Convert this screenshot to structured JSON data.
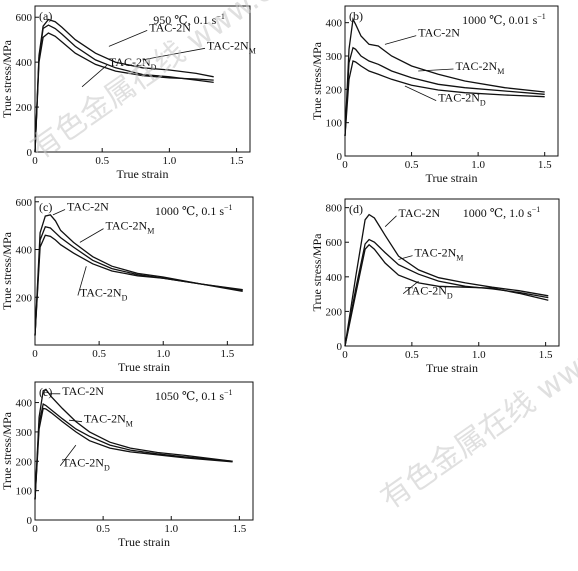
{
  "chart_data": [
    {
      "type": "line",
      "panel_label": "(a)",
      "condition": "950 ℃, 0.1 s",
      "condition_sup": "−1",
      "xlabel": "True strain",
      "ylabel": "True stress/MPa",
      "xlim": [
        0,
        1.6
      ],
      "ylim": [
        0,
        650
      ],
      "xticks": [
        0,
        0.5,
        1.0,
        1.5
      ],
      "xtick_labels": [
        "0",
        "0.5",
        "1.0",
        "1.5"
      ],
      "yticks": [
        0,
        200,
        400,
        600
      ],
      "ytick_labels": [
        "0",
        "200",
        "400",
        "600"
      ],
      "grid": false,
      "series": [
        {
          "name": "TAC-2N",
          "label_main": "TAC-2N",
          "label_sub": "",
          "x": [
            0,
            0.03,
            0.06,
            0.1,
            0.15,
            0.2,
            0.3,
            0.45,
            0.6,
            0.8,
            1.0,
            1.2,
            1.33
          ],
          "y": [
            0,
            430,
            560,
            590,
            580,
            555,
            500,
            440,
            400,
            375,
            365,
            350,
            335
          ]
        },
        {
          "name": "TAC-2NM",
          "label_main": "TAC-2N",
          "label_sub": "M",
          "x": [
            0,
            0.03,
            0.06,
            0.1,
            0.15,
            0.2,
            0.3,
            0.45,
            0.6,
            0.8,
            1.0,
            1.2,
            1.33
          ],
          "y": [
            0,
            420,
            550,
            565,
            550,
            525,
            470,
            410,
            375,
            345,
            335,
            320,
            310
          ]
        },
        {
          "name": "TAC-2ND",
          "label_main": "TAC-2N",
          "label_sub": "D",
          "x": [
            0,
            0.03,
            0.06,
            0.1,
            0.15,
            0.2,
            0.3,
            0.45,
            0.6,
            0.8,
            1.0,
            1.2,
            1.33
          ],
          "y": [
            0,
            400,
            510,
            530,
            515,
            490,
            440,
            390,
            360,
            340,
            330,
            325,
            320
          ]
        }
      ]
    },
    {
      "type": "line",
      "panel_label": "(b)",
      "condition": "1000 ℃, 0.01 s",
      "condition_sup": "−1",
      "xlabel": "True strain",
      "ylabel": "True stress/MPa",
      "xlim": [
        0,
        1.6
      ],
      "ylim": [
        0,
        450
      ],
      "xticks": [
        0,
        0.5,
        1.0,
        1.5
      ],
      "xtick_labels": [
        "0",
        "0.5",
        "1.0",
        "1.5"
      ],
      "yticks": [
        0,
        100,
        200,
        300,
        400
      ],
      "ytick_labels": [
        "0",
        "100",
        "200",
        "300",
        "400"
      ],
      "grid": false,
      "series": [
        {
          "name": "TAC-2N",
          "label_main": "TAC-2N",
          "label_sub": "",
          "x": [
            0,
            0.03,
            0.06,
            0.08,
            0.12,
            0.18,
            0.25,
            0.35,
            0.5,
            0.7,
            0.9,
            1.2,
            1.5
          ],
          "y": [
            60,
            320,
            410,
            395,
            360,
            335,
            330,
            300,
            270,
            245,
            225,
            205,
            192
          ]
        },
        {
          "name": "TAC-2NM",
          "label_main": "TAC-2N",
          "label_sub": "M",
          "x": [
            0,
            0.03,
            0.06,
            0.08,
            0.12,
            0.18,
            0.25,
            0.35,
            0.5,
            0.7,
            0.9,
            1.2,
            1.5
          ],
          "y": [
            60,
            280,
            325,
            320,
            300,
            285,
            275,
            255,
            235,
            215,
            205,
            195,
            185
          ]
        },
        {
          "name": "TAC-2ND",
          "label_main": "TAC-2N",
          "label_sub": "D",
          "x": [
            0,
            0.03,
            0.06,
            0.08,
            0.12,
            0.18,
            0.25,
            0.35,
            0.5,
            0.7,
            0.9,
            1.2,
            1.5
          ],
          "y": [
            60,
            230,
            285,
            282,
            270,
            255,
            245,
            230,
            212,
            198,
            190,
            183,
            178
          ]
        }
      ]
    },
    {
      "type": "line",
      "panel_label": "(c)",
      "condition": "1000 ℃, 0.1 s",
      "condition_sup": "−1",
      "xlabel": "True strain",
      "ylabel": "True stress/MPa",
      "xlim": [
        0,
        1.7
      ],
      "ylim": [
        0,
        620
      ],
      "xticks": [
        0,
        0.5,
        1.0,
        1.5
      ],
      "xtick_labels": [
        "0",
        "0.5",
        "1.0",
        "1.5"
      ],
      "yticks": [
        200,
        400,
        600
      ],
      "ytick_labels": [
        "200",
        "400",
        "600"
      ],
      "grid": false,
      "series": [
        {
          "name": "TAC-2N",
          "label_main": "TAC-2N",
          "label_sub": "",
          "x": [
            0,
            0.04,
            0.08,
            0.12,
            0.16,
            0.2,
            0.3,
            0.45,
            0.6,
            0.8,
            1.0,
            1.3,
            1.62
          ],
          "y": [
            40,
            470,
            540,
            545,
            520,
            480,
            430,
            370,
            330,
            300,
            285,
            255,
            225
          ]
        },
        {
          "name": "TAC-2NM",
          "label_main": "TAC-2N",
          "label_sub": "M",
          "x": [
            0,
            0.04,
            0.08,
            0.12,
            0.16,
            0.2,
            0.3,
            0.45,
            0.6,
            0.8,
            1.0,
            1.3,
            1.62
          ],
          "y": [
            40,
            440,
            495,
            490,
            470,
            450,
            410,
            355,
            320,
            295,
            280,
            255,
            230
          ]
        },
        {
          "name": "TAC-2ND",
          "label_main": "TAC-2N",
          "label_sub": "D",
          "x": [
            0,
            0.04,
            0.08,
            0.12,
            0.16,
            0.2,
            0.3,
            0.45,
            0.6,
            0.8,
            1.0,
            1.3,
            1.62
          ],
          "y": [
            40,
            410,
            460,
            455,
            440,
            420,
            385,
            340,
            310,
            290,
            280,
            255,
            232
          ]
        }
      ]
    },
    {
      "type": "line",
      "panel_label": "(d)",
      "condition": "1000 ℃, 1.0 s",
      "condition_sup": "−1",
      "xlabel": "True strain",
      "ylabel": "True stress/MPa",
      "xlim": [
        0,
        1.6
      ],
      "ylim": [
        0,
        850
      ],
      "xticks": [
        0,
        0.5,
        1.0,
        1.5
      ],
      "xtick_labels": [
        "0",
        "0.5",
        "1.0",
        "1.5"
      ],
      "yticks": [
        0,
        200,
        400,
        600,
        800
      ],
      "ytick_labels": [
        "0",
        "200",
        "400",
        "600",
        "800"
      ],
      "grid": false,
      "series": [
        {
          "name": "TAC-2N",
          "label_main": "TAC-2N",
          "label_sub": "",
          "x": [
            0,
            0.08,
            0.15,
            0.18,
            0.22,
            0.3,
            0.4,
            0.55,
            0.7,
            0.9,
            1.1,
            1.3,
            1.52
          ],
          "y": [
            0,
            400,
            730,
            760,
            740,
            640,
            520,
            440,
            395,
            365,
            340,
            320,
            290
          ]
        },
        {
          "name": "TAC-2NM",
          "label_main": "TAC-2N",
          "label_sub": "M",
          "x": [
            0,
            0.08,
            0.15,
            0.18,
            0.22,
            0.3,
            0.4,
            0.55,
            0.7,
            0.9,
            1.1,
            1.3,
            1.52
          ],
          "y": [
            0,
            330,
            590,
            615,
            600,
            540,
            470,
            415,
            375,
            345,
            330,
            310,
            280
          ]
        },
        {
          "name": "TAC-2ND",
          "label_main": "TAC-2N",
          "label_sub": "D",
          "x": [
            0,
            0.08,
            0.15,
            0.18,
            0.22,
            0.3,
            0.4,
            0.55,
            0.7,
            0.9,
            1.1,
            1.3,
            1.52
          ],
          "y": [
            0,
            300,
            560,
            585,
            560,
            480,
            410,
            365,
            345,
            340,
            335,
            305,
            265
          ]
        }
      ]
    },
    {
      "type": "line",
      "panel_label": "(e)",
      "condition": "1050 ℃, 0.1 s",
      "condition_sup": "−1",
      "xlabel": "True strain",
      "ylabel": "True stress/MPa",
      "xlim": [
        0,
        1.6
      ],
      "ylim": [
        0,
        470
      ],
      "xticks": [
        0,
        0.5,
        1.0,
        1.5
      ],
      "xtick_labels": [
        "0",
        "0.5",
        "1.0",
        "1.5"
      ],
      "yticks": [
        0,
        100,
        200,
        300,
        400
      ],
      "ytick_labels": [
        "0",
        "100",
        "200",
        "300",
        "400"
      ],
      "grid": false,
      "series": [
        {
          "name": "TAC-2N",
          "label_main": "TAC-2N",
          "label_sub": "",
          "x": [
            0,
            0.03,
            0.06,
            0.08,
            0.12,
            0.2,
            0.3,
            0.4,
            0.55,
            0.7,
            0.9,
            1.1,
            1.45
          ],
          "y": [
            70,
            350,
            440,
            445,
            420,
            380,
            335,
            300,
            265,
            245,
            230,
            220,
            200
          ]
        },
        {
          "name": "TAC-2NM",
          "label_main": "TAC-2N",
          "label_sub": "M",
          "x": [
            0,
            0.03,
            0.06,
            0.08,
            0.12,
            0.2,
            0.3,
            0.4,
            0.55,
            0.7,
            0.9,
            1.1,
            1.45
          ],
          "y": [
            70,
            330,
            395,
            390,
            375,
            345,
            310,
            285,
            255,
            238,
            225,
            215,
            200
          ]
        },
        {
          "name": "TAC-2ND",
          "label_main": "TAC-2N",
          "label_sub": "D",
          "x": [
            0,
            0.03,
            0.06,
            0.08,
            0.12,
            0.2,
            0.3,
            0.4,
            0.55,
            0.7,
            0.9,
            1.1,
            1.45
          ],
          "y": [
            70,
            310,
            380,
            378,
            365,
            335,
            300,
            270,
            245,
            232,
            222,
            212,
            198
          ]
        }
      ]
    }
  ],
  "watermark": {
    "text": "有色金属在线 www.cnnmol.com",
    "color": "#c8c8c8"
  },
  "colors": {
    "line": "#111111",
    "axis": "#111111",
    "background": "#ffffff"
  }
}
